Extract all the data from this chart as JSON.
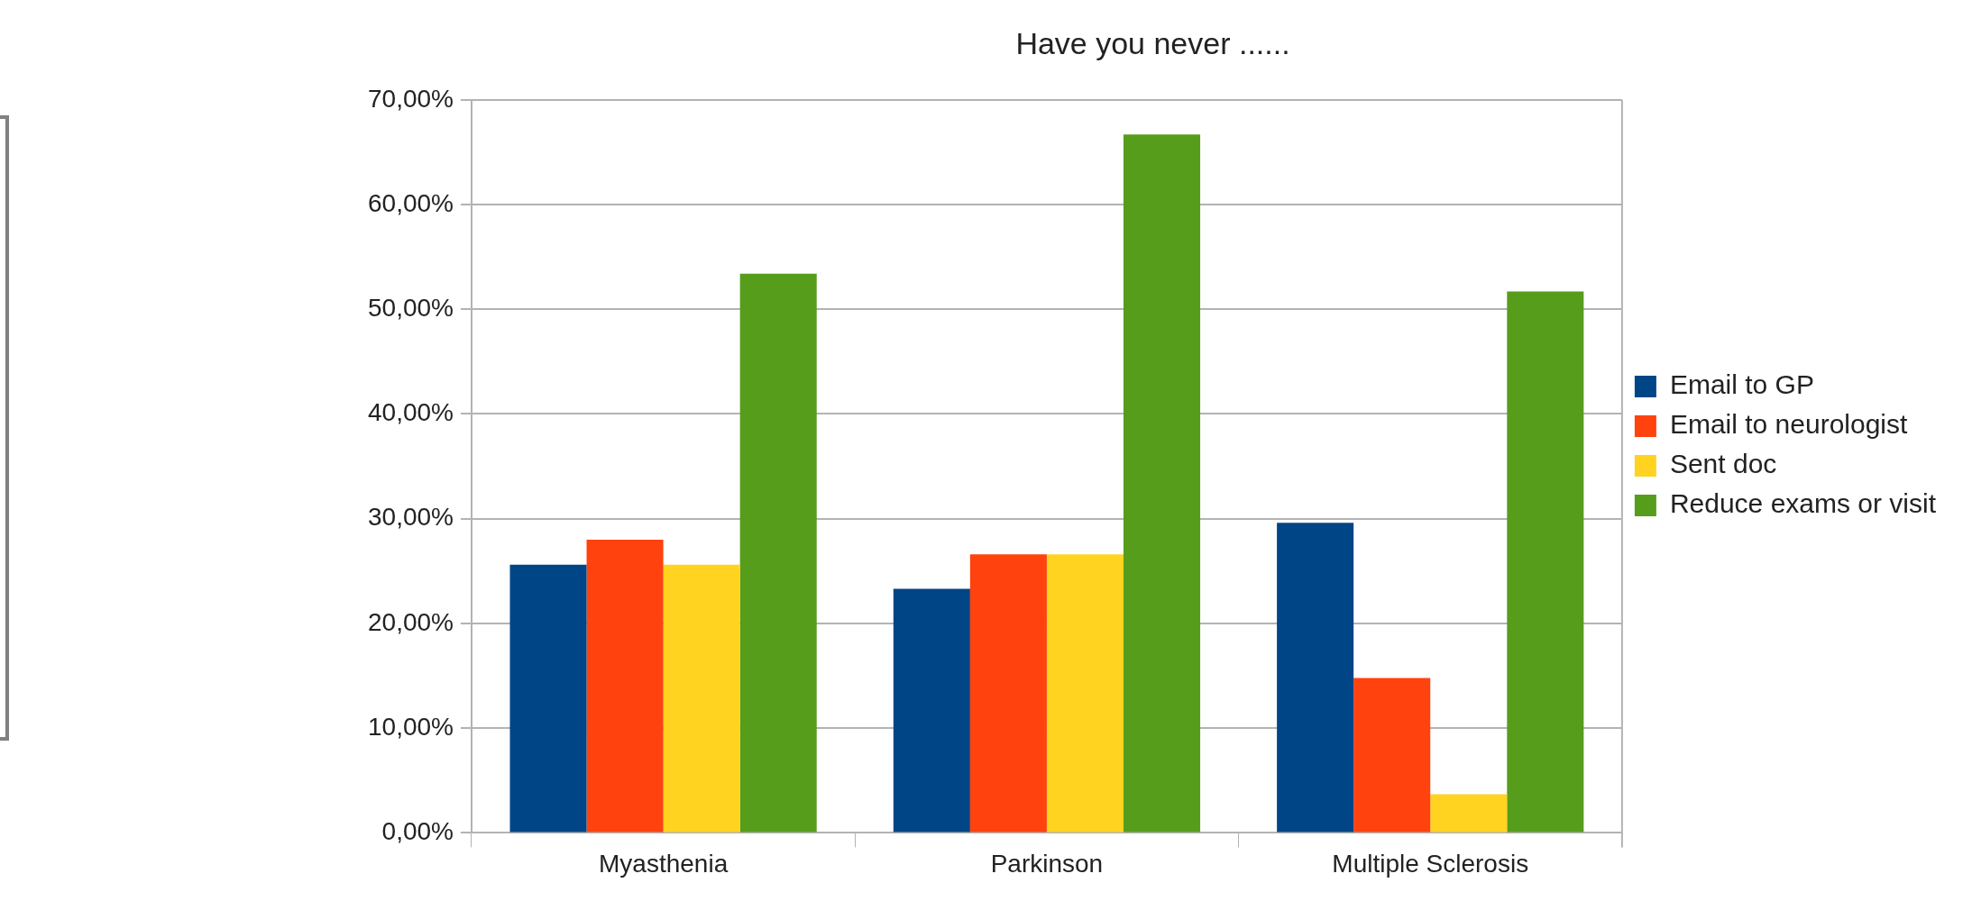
{
  "chart_data": {
    "type": "bar",
    "title": "Have you never ......",
    "categories": [
      "Myasthenia",
      "Parkinson",
      "Multiple Sclerosis"
    ],
    "series": [
      {
        "name": "Email to GP",
        "color": "#004586",
        "values": [
          25.6,
          23.3,
          29.6
        ]
      },
      {
        "name": "Email to neurologist",
        "color": "#ff420e",
        "values": [
          28.0,
          26.6,
          14.8
        ]
      },
      {
        "name": "Sent doc",
        "color": "#ffd320",
        "values": [
          25.6,
          26.6,
          3.7
        ]
      },
      {
        "name": "Reduce exams or visit",
        "color": "#579d1c",
        "values": [
          53.4,
          66.7,
          51.7
        ]
      }
    ],
    "ylim": [
      0,
      70
    ],
    "yticks": [
      {
        "value": 0,
        "label": "0,00%"
      },
      {
        "value": 10,
        "label": "10,00%"
      },
      {
        "value": 20,
        "label": "20,00%"
      },
      {
        "value": 30,
        "label": "30,00%"
      },
      {
        "value": 40,
        "label": "40,00%"
      },
      {
        "value": 50,
        "label": "50,00%"
      },
      {
        "value": 60,
        "label": "60,00%"
      },
      {
        "value": 70,
        "label": "70,00%"
      }
    ],
    "grid": "y",
    "legend": "right"
  }
}
